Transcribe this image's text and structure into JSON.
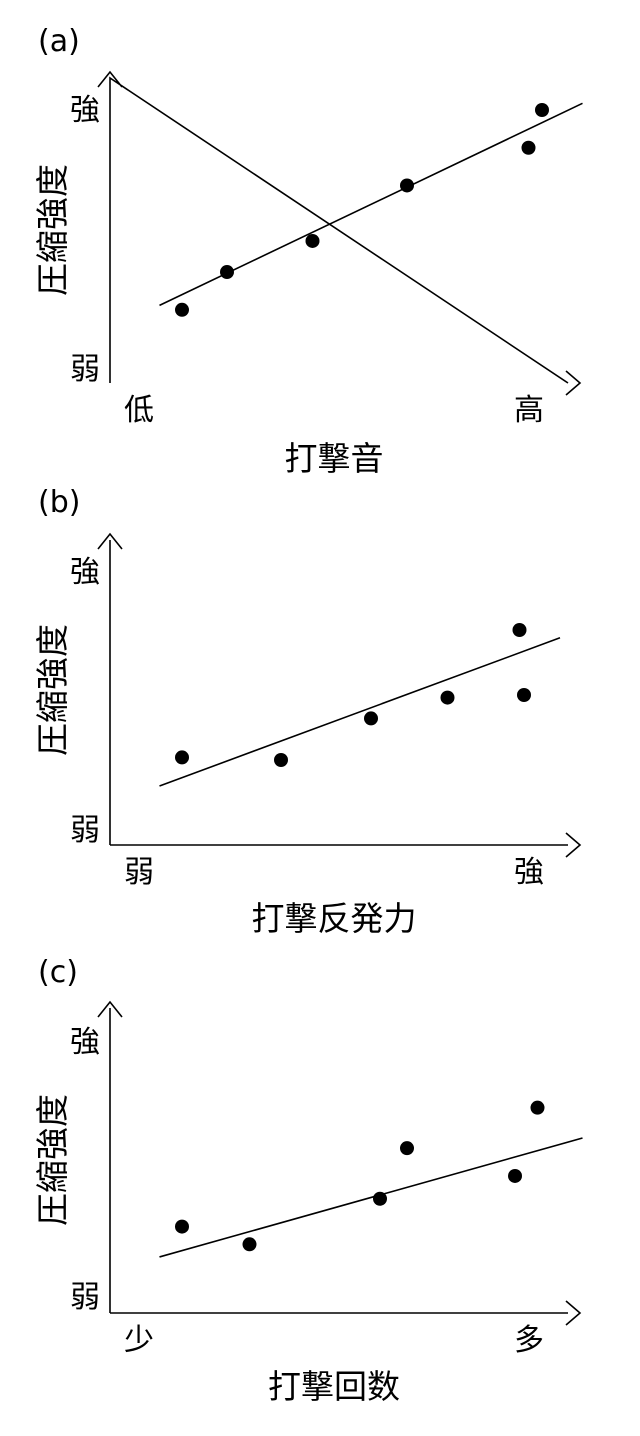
{
  "chart_data": [
    {
      "type": "scatter",
      "panel_label": "(a)",
      "xlabel": "打撃音",
      "ylabel": "圧縮強度",
      "x_low_label": "低",
      "x_high_label": "高",
      "y_low_label": "弱",
      "y_high_label": "強",
      "xlim": [
        0,
        10
      ],
      "ylim": [
        0,
        10
      ],
      "points": [
        {
          "x": 1.6,
          "y": 1.0
        },
        {
          "x": 2.6,
          "y": 2.7
        },
        {
          "x": 4.5,
          "y": 4.1
        },
        {
          "x": 6.6,
          "y": 6.6
        },
        {
          "x": 9.3,
          "y": 8.3
        },
        {
          "x": 9.6,
          "y": 10.0
        }
      ],
      "trend": {
        "x": [
          1.1,
          10.5
        ],
        "y": [
          1.2,
          10.3
        ]
      }
    },
    {
      "type": "scatter",
      "panel_label": "(b)",
      "xlabel": "打撃反発力",
      "ylabel": "圧縮強度",
      "x_low_label": "弱",
      "x_high_label": "強",
      "y_low_label": "弱",
      "y_high_label": "強",
      "xlim": [
        0,
        10
      ],
      "ylim": [
        0,
        10
      ],
      "points": [
        {
          "x": 1.6,
          "y": 3.1
        },
        {
          "x": 3.8,
          "y": 3.0
        },
        {
          "x": 5.8,
          "y": 4.6
        },
        {
          "x": 7.5,
          "y": 5.4
        },
        {
          "x": 9.2,
          "y": 5.5
        },
        {
          "x": 9.1,
          "y": 8.0
        }
      ],
      "trend": {
        "x": [
          1.1,
          10.0
        ],
        "y": [
          2.0,
          7.7
        ]
      }
    },
    {
      "type": "scatter",
      "panel_label": "(c)",
      "xlabel": "打撃回数",
      "ylabel": "圧縮強度",
      "x_low_label": "少",
      "x_high_label": "多",
      "y_low_label": "弱",
      "y_high_label": "強",
      "xlim": [
        0,
        10
      ],
      "ylim": [
        0,
        10
      ],
      "points": [
        {
          "x": 1.6,
          "y": 3.1
        },
        {
          "x": 3.1,
          "y": 2.4
        },
        {
          "x": 6.0,
          "y": 4.2
        },
        {
          "x": 6.6,
          "y": 6.2
        },
        {
          "x": 9.0,
          "y": 5.1
        },
        {
          "x": 9.5,
          "y": 7.8
        }
      ],
      "trend": {
        "x": [
          1.1,
          10.5
        ],
        "y": [
          1.9,
          6.6
        ]
      }
    }
  ]
}
